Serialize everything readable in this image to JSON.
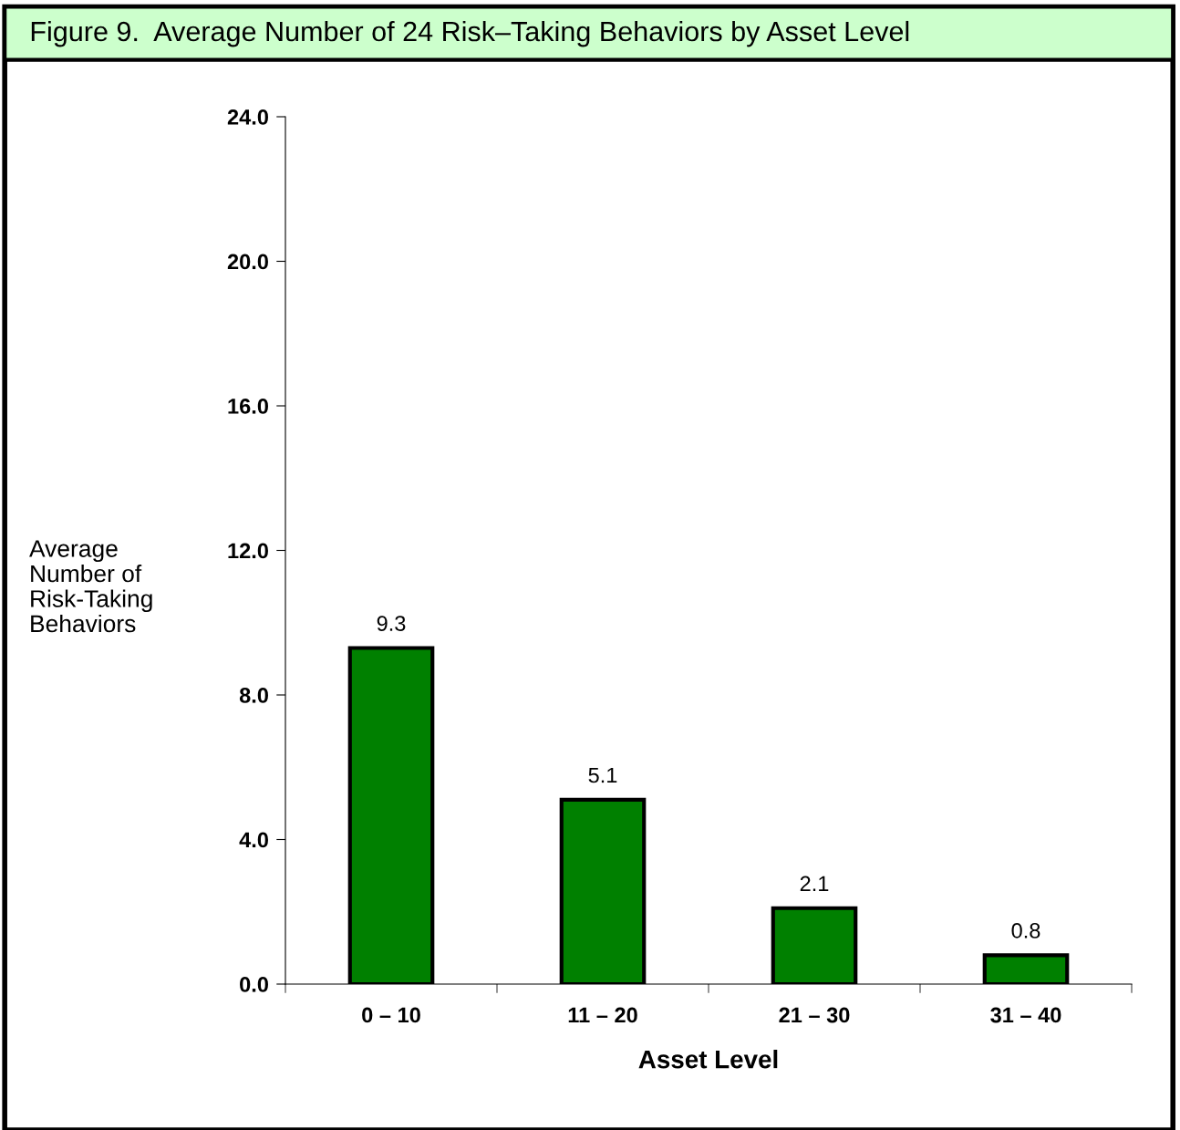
{
  "chart_data": {
    "type": "bar",
    "title": "Figure 9.  Average Number of 24 Risk–Taking Behaviors by Asset Level",
    "xlabel": "Asset Level",
    "ylabel": "Average\nNumber of\nRisk-Taking\nBehaviors",
    "categories": [
      "0 – 10",
      "11 – 20",
      "21 – 30",
      "31 – 40"
    ],
    "values": [
      9.3,
      5.1,
      2.1,
      0.8
    ],
    "color": "#008000",
    "ylim": [
      0,
      24
    ],
    "yticks": [
      {
        "value": 0,
        "label": "0.0"
      },
      {
        "value": 4,
        "label": "4.0"
      },
      {
        "value": 8,
        "label": "8.0"
      },
      {
        "value": 12,
        "label": "12.0"
      },
      {
        "value": 16,
        "label": "16.0"
      },
      {
        "value": 20,
        "label": "20.0"
      },
      {
        "value": 24,
        "label": "24.0"
      }
    ],
    "data_labels": true,
    "grid": false
  }
}
